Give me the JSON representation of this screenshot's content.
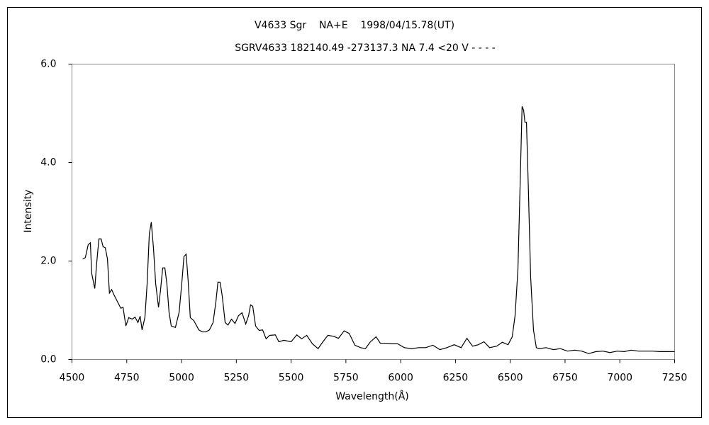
{
  "chart_data": {
    "type": "line",
    "title": "V4633 Sgr    NA+E    1998/04/15.78(UT)",
    "subtitle": "SGRV4633 182140.49 -273137.3 NA 7.4 <20 V - - - -",
    "x_label": "Wavelength(Å)",
    "y_label": "Intensity",
    "xlim": [
      4500,
      7250
    ],
    "xticks": [
      4500,
      4750,
      5000,
      5250,
      5500,
      5750,
      6000,
      6250,
      6500,
      6750,
      7000,
      7250
    ],
    "ylim": [
      0,
      6
    ],
    "yticks": [
      {
        "value": 0,
        "label": "0.0"
      },
      {
        "value": 2,
        "label": "2.0"
      },
      {
        "value": 4,
        "label": "4.0"
      },
      {
        "value": 6,
        "label": "6.0"
      }
    ],
    "grid": false,
    "series": [
      {
        "color": "#000000",
        "x": [
          4549,
          4561,
          4574,
          4584,
          4590,
          4604,
          4613,
          4623,
          4633,
          4642,
          4652,
          4662,
          4671,
          4681,
          4691,
          4707,
          4723,
          4733,
          4746,
          4759,
          4775,
          4788,
          4801,
          4811,
          4820,
          4833,
          4843,
          4853,
          4862,
          4872,
          4882,
          4895,
          4904,
          4914,
          4924,
          4933,
          4943,
          4953,
          4972,
          4989,
          5001,
          5011,
          5021,
          5030,
          5040,
          5056,
          5079,
          5095,
          5111,
          5127,
          5144,
          5157,
          5166,
          5176,
          5186,
          5199,
          5212,
          5228,
          5244,
          5260,
          5276,
          5293,
          5306,
          5315,
          5325,
          5338,
          5354,
          5370,
          5386,
          5402,
          5428,
          5444,
          5467,
          5500,
          5526,
          5548,
          5571,
          5597,
          5623,
          5645,
          5668,
          5694,
          5716,
          5742,
          5765,
          5791,
          5817,
          5839,
          5862,
          5888,
          5907,
          5933,
          5959,
          5985,
          6017,
          6050,
          6082,
          6114,
          6147,
          6179,
          6211,
          6244,
          6276,
          6302,
          6328,
          6354,
          6380,
          6406,
          6438,
          6464,
          6490,
          6509,
          6522,
          6535,
          6545,
          6554,
          6561,
          6567,
          6574,
          6583,
          6593,
          6606,
          6619,
          6632,
          6664,
          6697,
          6729,
          6761,
          6794,
          6826,
          6858,
          6891,
          6923,
          6955,
          6988,
          7020,
          7052,
          7085,
          7117,
          7149,
          7182,
          7214,
          7250
        ],
        "values": [
          2.04,
          2.07,
          2.33,
          2.37,
          1.75,
          1.44,
          1.97,
          2.45,
          2.45,
          2.29,
          2.27,
          2.04,
          1.35,
          1.42,
          1.32,
          1.18,
          1.04,
          1.06,
          0.68,
          0.85,
          0.82,
          0.86,
          0.75,
          0.88,
          0.6,
          0.86,
          1.54,
          2.55,
          2.79,
          2.26,
          1.54,
          1.06,
          1.4,
          1.86,
          1.86,
          1.54,
          0.96,
          0.68,
          0.65,
          0.96,
          1.54,
          2.09,
          2.14,
          1.61,
          0.85,
          0.79,
          0.6,
          0.56,
          0.56,
          0.6,
          0.75,
          1.18,
          1.57,
          1.57,
          1.28,
          0.75,
          0.7,
          0.82,
          0.73,
          0.89,
          0.95,
          0.72,
          0.89,
          1.11,
          1.08,
          0.68,
          0.59,
          0.6,
          0.42,
          0.49,
          0.5,
          0.36,
          0.39,
          0.36,
          0.5,
          0.42,
          0.49,
          0.32,
          0.22,
          0.36,
          0.49,
          0.47,
          0.43,
          0.58,
          0.53,
          0.29,
          0.24,
          0.22,
          0.36,
          0.46,
          0.33,
          0.33,
          0.32,
          0.32,
          0.24,
          0.22,
          0.24,
          0.24,
          0.29,
          0.2,
          0.24,
          0.3,
          0.24,
          0.43,
          0.27,
          0.3,
          0.36,
          0.24,
          0.27,
          0.35,
          0.3,
          0.46,
          0.89,
          1.83,
          3.55,
          5.14,
          5.06,
          4.82,
          4.82,
          3.41,
          1.68,
          0.6,
          0.24,
          0.22,
          0.24,
          0.2,
          0.22,
          0.17,
          0.19,
          0.17,
          0.12,
          0.16,
          0.17,
          0.14,
          0.17,
          0.16,
          0.19,
          0.17,
          0.17,
          0.17,
          0.16,
          0.16,
          0.16
        ]
      }
    ]
  }
}
